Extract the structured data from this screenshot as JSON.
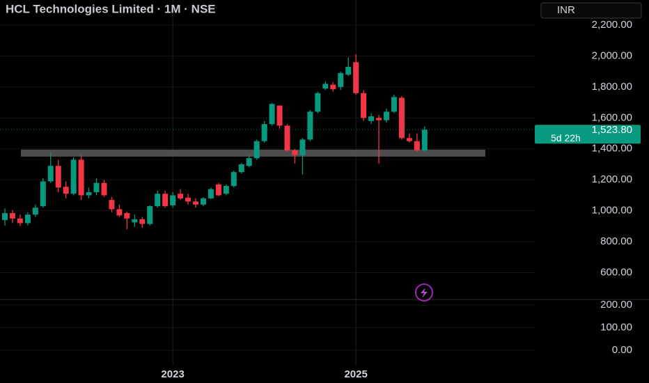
{
  "chart_data": {
    "type": "candlestick",
    "title": "HCL Technologies Limited · 1M · NSE",
    "currency": "INR",
    "categories": [
      null,
      null,
      null,
      null,
      null,
      null,
      null,
      null,
      null,
      null,
      null,
      null,
      null,
      null,
      null,
      null,
      null,
      null,
      null,
      null,
      null,
      null,
      "2023",
      null,
      null,
      null,
      null,
      null,
      null,
      null,
      null,
      null,
      null,
      null,
      null,
      null,
      null,
      null,
      null,
      null,
      null,
      null,
      null,
      null,
      null,
      null,
      "2025",
      null,
      null,
      null,
      null,
      null,
      null,
      null,
      null,
      null
    ],
    "open": [
      940,
      985,
      950,
      920,
      975,
      1030,
      1190,
      1290,
      1155,
      1110,
      1330,
      1100,
      1120,
      1180,
      1070,
      1010,
      985,
      925,
      945,
      915,
      1030,
      1110,
      1035,
      1110,
      1085,
      1060,
      1040,
      1080,
      1170,
      1110,
      1160,
      1250,
      1290,
      1340,
      1450,
      1560,
      1680,
      1550,
      1390,
      1360,
      1460,
      1640,
      1790,
      1815,
      1800,
      1880,
      1960,
      1760,
      1580,
      1600,
      1585,
      1640,
      1730,
      1470,
      1450,
      1390
    ],
    "high": [
      1015,
      1005,
      975,
      990,
      1040,
      1210,
      1377,
      1330,
      1190,
      1345,
      1359,
      1150,
      1210,
      1200,
      1090,
      1040,
      995,
      975,
      960,
      1035,
      1130,
      1130,
      1120,
      1140,
      1110,
      1080,
      1090,
      1150,
      1180,
      1170,
      1260,
      1310,
      1360,
      1460,
      1580,
      1697,
      1680,
      1560,
      1400,
      1470,
      1650,
      1770,
      1835,
      1830,
      1900,
      1990,
      2012,
      1780,
      1630,
      1620,
      1660,
      1750,
      1740,
      1500,
      1500,
      1545
    ],
    "low": [
      905,
      920,
      900,
      905,
      960,
      1020,
      1180,
      1120,
      1080,
      1100,
      1070,
      1080,
      1100,
      1090,
      990,
      960,
      880,
      895,
      890,
      905,
      1020,
      1020,
      1020,
      1070,
      1040,
      1020,
      1030,
      1075,
      1095,
      1100,
      1150,
      1240,
      1280,
      1330,
      1440,
      1550,
      1530,
      1380,
      1305,
      1235,
      1450,
      1630,
      1780,
      1770,
      1780,
      1870,
      1750,
      1580,
      1560,
      1303,
      1570,
      1630,
      1460,
      1440,
      1380,
      1380
    ],
    "close": [
      985,
      950,
      920,
      975,
      1020,
      1190,
      1290,
      1150,
      1110,
      1330,
      1100,
      1120,
      1180,
      1100,
      1010,
      970,
      950,
      945,
      915,
      1030,
      1110,
      1030,
      1100,
      1080,
      1060,
      1040,
      1080,
      1140,
      1100,
      1160,
      1250,
      1300,
      1340,
      1450,
      1560,
      1690,
      1550,
      1390,
      1360,
      1460,
      1640,
      1760,
      1820,
      1785,
      1890,
      1930,
      1760,
      1600,
      1610,
      1585,
      1640,
      1735,
      1470,
      1450,
      1390,
      1523.8
    ],
    "up_color": "#089981",
    "down_color": "#f23645",
    "last_price": {
      "value": 1523.8,
      "label": "1,523.80",
      "countdown": "5d 22h"
    },
    "support_zone": {
      "low": 1350,
      "high": 1395,
      "color": "#5a5a5a"
    },
    "ylim": [
      427,
      2362
    ],
    "yticks": [
      {
        "value": 600,
        "label": "600.00"
      },
      {
        "value": 800,
        "label": "800.00"
      },
      {
        "value": 1000,
        "label": "1,000.00"
      },
      {
        "value": 1200,
        "label": "1,200.00"
      },
      {
        "value": 1400,
        "label": "1,400.00"
      },
      {
        "value": 1600,
        "label": "1,600.00"
      },
      {
        "value": 1800,
        "label": "1,800.00"
      },
      {
        "value": 2000,
        "label": "2,000.00"
      },
      {
        "value": 2200,
        "label": "2,200.00"
      }
    ],
    "y2lim": [
      -68,
      225
    ],
    "y2ticks": [
      {
        "value": 0,
        "label": "0.00"
      },
      {
        "value": 100,
        "label": "100.00"
      },
      {
        "value": 200,
        "label": "200.00"
      }
    ],
    "grid": true
  }
}
